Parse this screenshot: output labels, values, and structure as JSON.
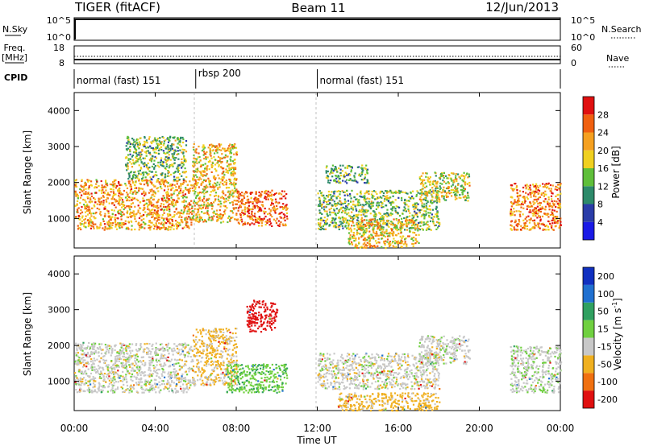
{
  "header": {
    "title": "TIGER (fitACF)",
    "beam": "Beam 11",
    "date": "12/Jun/2013"
  },
  "nsky_panel": {
    "left_label": "N.Sky",
    "right_label": "N.Search",
    "left_ticks": [
      "10^5",
      "10^0"
    ],
    "right_ticks": [
      "10^5",
      "10^0"
    ]
  },
  "freq_panel": {
    "left_label_1": "Freq.",
    "left_label_2": "[MHz]",
    "left_ticks": [
      "18",
      "8"
    ],
    "right_label": "Nave",
    "right_ticks": [
      "60",
      "0"
    ]
  },
  "cpid_panel": {
    "label": "CPID",
    "segments": [
      {
        "label": "normal (fast) 151",
        "start_hour": 0,
        "end_hour": 6
      },
      {
        "label": "rbsp 200",
        "start_hour": 6,
        "end_hour": 12
      },
      {
        "label": "normal (fast) 151",
        "start_hour": 12,
        "end_hour": 24
      }
    ]
  },
  "colorbars": {
    "power": {
      "label": "Power [dB]",
      "ticks": [
        "4",
        "8",
        "12",
        "16",
        "20",
        "24",
        "28"
      ],
      "colors": [
        "#1a1ae6",
        "#2a3ca8",
        "#2d8a6a",
        "#5fbf3a",
        "#f0d020",
        "#f5a020",
        "#f06010",
        "#e01010"
      ]
    },
    "velocity": {
      "label_main": "Velocity [m s",
      "label_sup": "-1",
      "label_end": "]",
      "ticks": [
        "200",
        "100",
        "50",
        "15",
        "-15",
        "-50",
        "-100",
        "-200"
      ],
      "colors": [
        "#1030c0",
        "#2070d0",
        "#30a060",
        "#70d040",
        "#c8c8c8",
        "#f0b020",
        "#f07010",
        "#e01010"
      ]
    }
  },
  "chart_data": [
    {
      "type": "heatmap",
      "name": "power",
      "xlabel": "",
      "ylabel": "Slant Range [km]",
      "xlim": [
        0,
        24
      ],
      "ylim": [
        180,
        4500
      ],
      "yticks": [
        "1000",
        "2000",
        "3000",
        "4000"
      ],
      "xticks": [],
      "note": "",
      "echo_regions": [
        {
          "t0": 0.0,
          "t1": 5.8,
          "r0": 700,
          "r1": 2100,
          "level": 22
        },
        {
          "t0": 2.5,
          "t1": 5.5,
          "r0": 2100,
          "r1": 3300,
          "level": 14
        },
        {
          "t0": 5.8,
          "t1": 8.0,
          "r0": 900,
          "r1": 3100,
          "level": 20
        },
        {
          "t0": 8.0,
          "t1": 10.5,
          "r0": 800,
          "r1": 1800,
          "level": 26
        },
        {
          "t0": 12.0,
          "t1": 18.0,
          "r0": 700,
          "r1": 1800,
          "level": 14
        },
        {
          "t0": 13.5,
          "t1": 17.0,
          "r0": 200,
          "r1": 1000,
          "level": 20
        },
        {
          "t0": 12.4,
          "t1": 14.5,
          "r0": 2000,
          "r1": 2500,
          "level": 12
        },
        {
          "t0": 17.0,
          "t1": 19.5,
          "r0": 1500,
          "r1": 2300,
          "level": 18
        },
        {
          "t0": 21.5,
          "t1": 24.0,
          "r0": 700,
          "r1": 2000,
          "level": 24
        }
      ]
    },
    {
      "type": "heatmap",
      "name": "velocity",
      "xlabel": "Time UT",
      "ylabel": "Slant Range [km]",
      "xlim": [
        0,
        24
      ],
      "ylim": [
        180,
        4500
      ],
      "yticks": [
        "1000",
        "2000",
        "3000",
        "4000"
      ],
      "xticks": [
        "00:00",
        "04:00",
        "08:00",
        "12:00",
        "16:00",
        "20:00",
        "00:00"
      ],
      "echo_regions": [
        {
          "t0": 0.0,
          "t1": 5.8,
          "r0": 700,
          "r1": 2100,
          "level": 0
        },
        {
          "t0": 5.8,
          "t1": 8.0,
          "r0": 900,
          "r1": 2500,
          "level": -20
        },
        {
          "t0": 7.5,
          "t1": 10.5,
          "r0": 700,
          "r1": 1500,
          "level": 40
        },
        {
          "t0": 8.5,
          "t1": 10.0,
          "r0": 2400,
          "r1": 3300,
          "level": -150
        },
        {
          "t0": 12.0,
          "t1": 18.0,
          "r0": 800,
          "r1": 1800,
          "level": 0
        },
        {
          "t0": 13.0,
          "t1": 18.0,
          "r0": 200,
          "r1": 700,
          "level": -30
        },
        {
          "t0": 17.0,
          "t1": 19.5,
          "r0": 1500,
          "r1": 2300,
          "level": 0
        },
        {
          "t0": 21.5,
          "t1": 24.0,
          "r0": 700,
          "r1": 2000,
          "level": 5
        }
      ]
    }
  ]
}
